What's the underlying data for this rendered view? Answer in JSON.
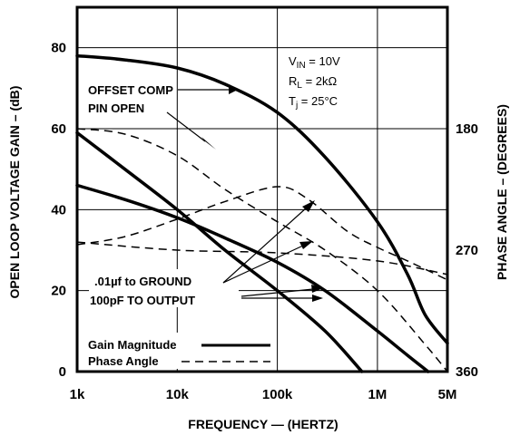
{
  "chart_data": {
    "type": "line",
    "xscale": "log",
    "xlim": [
      1000,
      5000000
    ],
    "ylim": [
      0,
      90
    ],
    "y2lim": [
      360,
      90
    ],
    "xlabel": "FREQUENCY — (HERTZ)",
    "ylabel": "OPEN LOOP VOLTAGE GAIN – (dB)",
    "y2label": "PHASE ANGLE – (DEGREES)",
    "xticks": [
      {
        "value": 1000,
        "label": "1k"
      },
      {
        "value": 10000,
        "label": "10k"
      },
      {
        "value": 100000,
        "label": "100k"
      },
      {
        "value": 1000000,
        "label": "1M"
      },
      {
        "value": 5000000,
        "label": "5M"
      }
    ],
    "yticks": [
      {
        "value": 0,
        "label": "0"
      },
      {
        "value": 20,
        "label": "20"
      },
      {
        "value": 40,
        "label": "40"
      },
      {
        "value": 60,
        "label": "60"
      },
      {
        "value": 80,
        "label": "80"
      }
    ],
    "y2ticks": [
      {
        "value": 180,
        "label": "180"
      },
      {
        "value": 270,
        "label": "270"
      },
      {
        "value": 360,
        "label": "360"
      }
    ],
    "grid": true,
    "legend_position": "bottom-left",
    "legend": [
      {
        "label": "Gain Magnitude",
        "style": "solid"
      },
      {
        "label": "Phase Angle",
        "style": "dashed"
      }
    ],
    "conditions": {
      "vin": {
        "main": "V",
        "sub": "IN",
        "rest": " = 10V"
      },
      "rl": {
        "main": "R",
        "sub": "L",
        "rest": " = 2kΩ"
      },
      "tj": {
        "main": "T",
        "sub": "j",
        "rest": " = 25°C"
      }
    },
    "annotations": {
      "offset_line1": "OFFSET COMP",
      "offset_line2": "PIN OPEN",
      "cap_line1": ".01µf  to GROUND",
      "cap_line2": "100pF TO OUTPUT"
    },
    "series": [
      {
        "type": "gain",
        "style": "solid",
        "points": [
          [
            1000,
            78
          ],
          [
            3000,
            77
          ],
          [
            10000,
            75
          ],
          [
            30000,
            71
          ],
          [
            100000,
            64
          ],
          [
            300000,
            53
          ],
          [
            1000000,
            37
          ],
          [
            2000000,
            24
          ],
          [
            3000000,
            14
          ],
          [
            5000000,
            7
          ]
        ]
      },
      {
        "type": "gain",
        "style": "solid",
        "points": [
          [
            1000,
            59
          ],
          [
            3000,
            50
          ],
          [
            10000,
            40
          ],
          [
            30000,
            30
          ],
          [
            100000,
            20
          ],
          [
            300000,
            10
          ],
          [
            700000,
            0
          ]
        ]
      },
      {
        "type": "gain",
        "style": "solid",
        "points": [
          [
            1000,
            46
          ],
          [
            3000,
            42.5
          ],
          [
            10000,
            38
          ],
          [
            30000,
            33
          ],
          [
            100000,
            27
          ],
          [
            300000,
            20
          ],
          [
            1000000,
            10
          ],
          [
            2000000,
            4
          ],
          [
            3200000,
            0
          ]
        ]
      },
      {
        "type": "phase",
        "style": "dashed",
        "points": [
          [
            1000,
            180
          ],
          [
            3000,
            184
          ],
          [
            10000,
            200
          ],
          [
            30000,
            225
          ],
          [
            100000,
            249
          ],
          [
            300000,
            270
          ],
          [
            1000000,
            300
          ],
          [
            3000000,
            340
          ],
          [
            5000000,
            360
          ]
        ]
      },
      {
        "type": "phase",
        "style": "dashed",
        "points": [
          [
            1000,
            264
          ],
          [
            10000,
            270
          ],
          [
            100000,
            272
          ],
          [
            1000000,
            278
          ],
          [
            5000000,
            288
          ]
        ]
      },
      {
        "type": "phase",
        "style": "dashed",
        "points": [
          [
            1000,
            266
          ],
          [
            3000,
            260
          ],
          [
            10000,
            247
          ],
          [
            30000,
            234
          ],
          [
            100000,
            223
          ],
          [
            200000,
            232
          ],
          [
            500000,
            256
          ],
          [
            1000000,
            268
          ],
          [
            2000000,
            278
          ],
          [
            5000000,
            292
          ]
        ]
      }
    ]
  }
}
